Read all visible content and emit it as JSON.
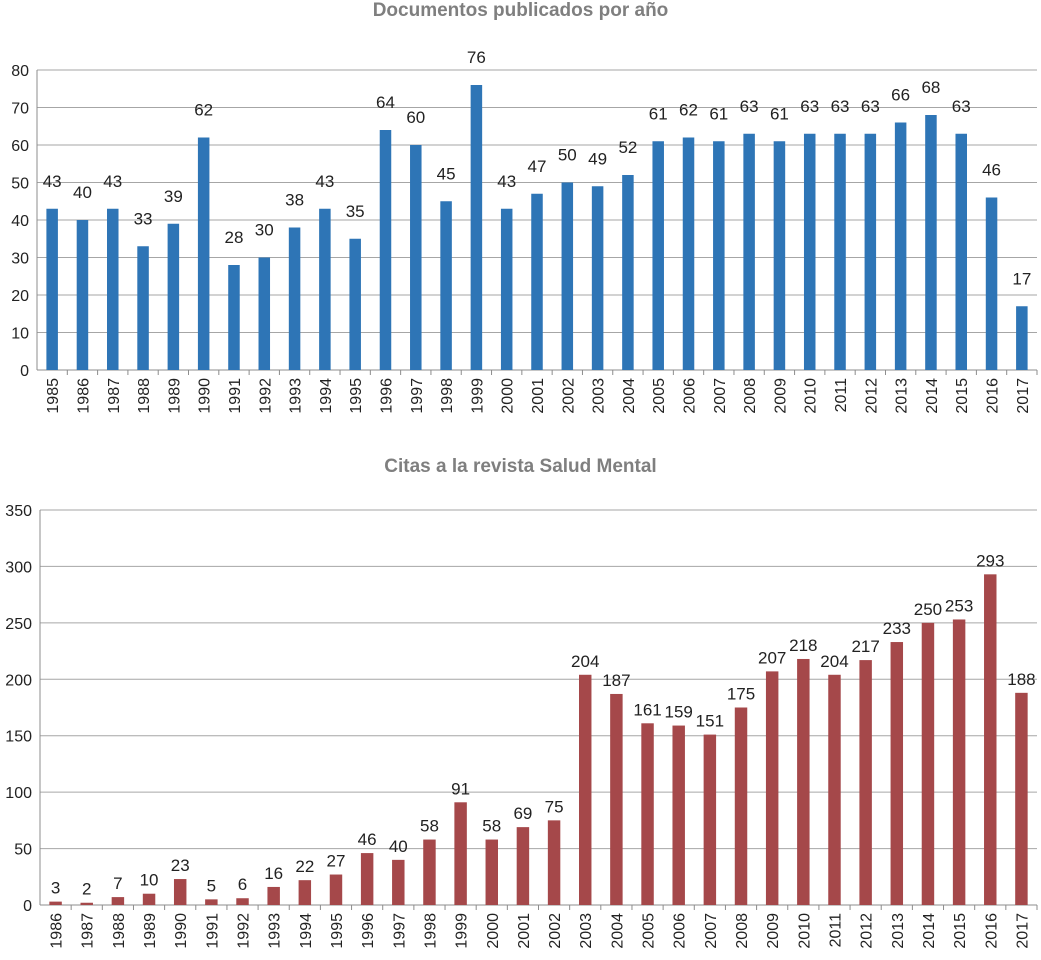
{
  "chart_data": [
    {
      "type": "bar",
      "title": "Documentos publicados por año",
      "xlabel": "",
      "ylabel": "",
      "categories": [
        "1985",
        "1986",
        "1987",
        "1988",
        "1989",
        "1990",
        "1991",
        "1992",
        "1993",
        "1994",
        "1995",
        "1996",
        "1997",
        "1998",
        "1999",
        "2000",
        "2001",
        "2002",
        "2003",
        "2004",
        "2005",
        "2006",
        "2007",
        "2008",
        "2009",
        "2010",
        "2011",
        "2012",
        "2013",
        "2014",
        "2015",
        "2016",
        "2017"
      ],
      "values": [
        43,
        40,
        43,
        33,
        39,
        62,
        28,
        30,
        38,
        43,
        35,
        64,
        60,
        45,
        76,
        43,
        47,
        50,
        49,
        52,
        61,
        62,
        61,
        63,
        61,
        63,
        63,
        63,
        66,
        68,
        63,
        46,
        17
      ],
      "ylim": [
        0,
        80
      ],
      "yticks": [
        0,
        10,
        20,
        30,
        40,
        50,
        60,
        70,
        80
      ],
      "grid": true,
      "legend": "none",
      "color": "#2e75b6"
    },
    {
      "type": "bar",
      "title": "Citas a la revista Salud Mental",
      "xlabel": "",
      "ylabel": "",
      "categories": [
        "1986",
        "1987",
        "1988",
        "1989",
        "1990",
        "1991",
        "1992",
        "1993",
        "1994",
        "1995",
        "1996",
        "1997",
        "1998",
        "1999",
        "2000",
        "2001",
        "2002",
        "2003",
        "2004",
        "2005",
        "2006",
        "2007",
        "2008",
        "2009",
        "2010",
        "2011",
        "2012",
        "2013",
        "2014",
        "2015",
        "2016",
        "2017"
      ],
      "values": [
        3,
        2,
        7,
        10,
        23,
        5,
        6,
        16,
        22,
        27,
        46,
        40,
        58,
        91,
        58,
        69,
        75,
        204,
        187,
        161,
        159,
        151,
        175,
        207,
        218,
        204,
        217,
        233,
        250,
        253,
        293,
        188
      ],
      "ylim": [
        0,
        350
      ],
      "yticks": [
        0,
        50,
        100,
        150,
        200,
        250,
        300,
        350
      ],
      "grid": true,
      "legend": "none",
      "color": "#a5484a"
    }
  ]
}
